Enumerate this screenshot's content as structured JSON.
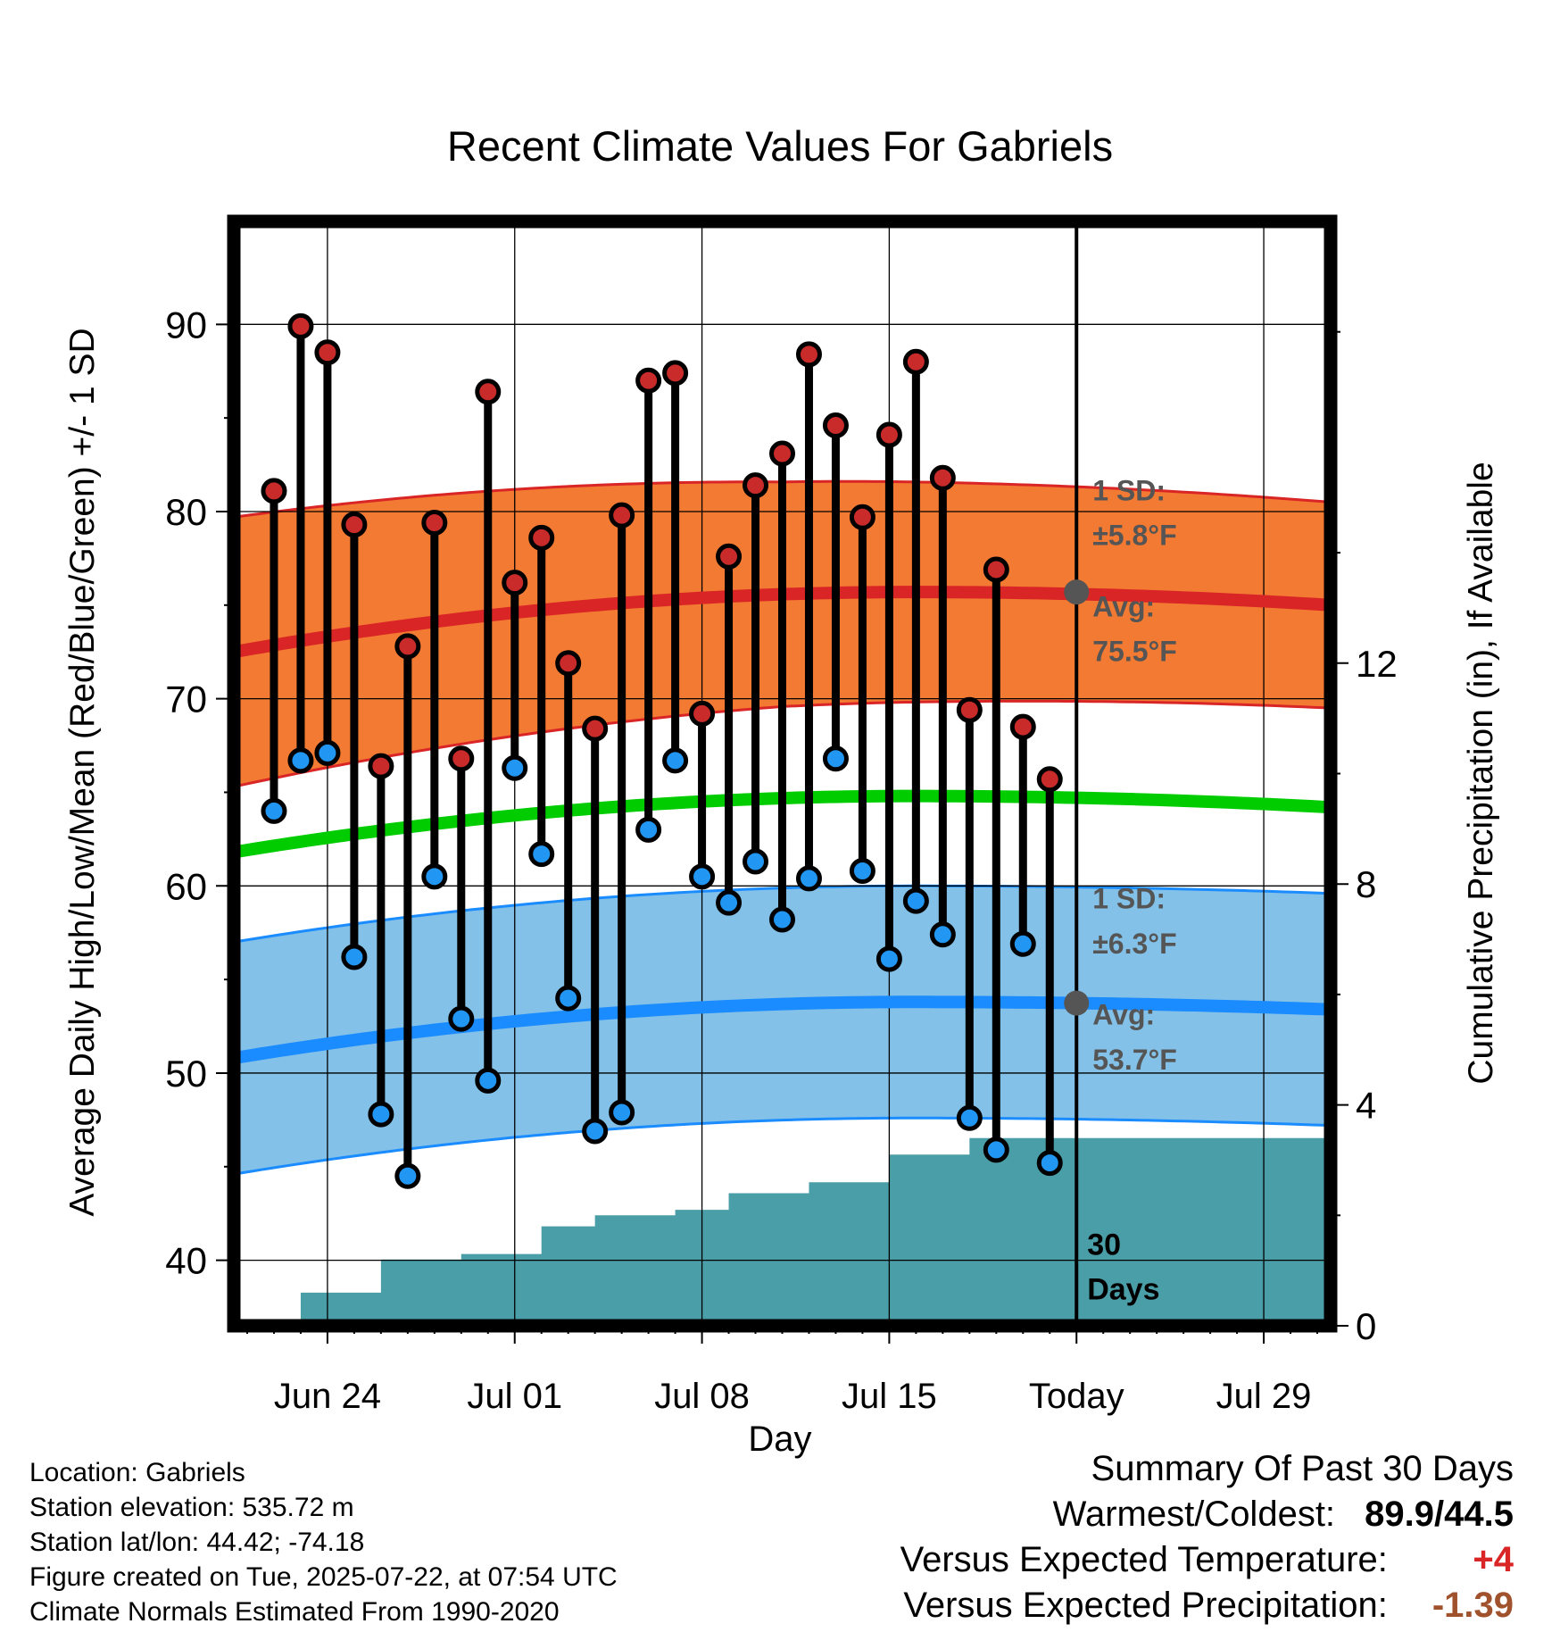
{
  "chart_data": {
    "type": "line",
    "title": "Recent Climate Values For Gabriels",
    "xlabel": "Day",
    "ylabel_left": "Average Daily High/Low/Mean (Red/Blue/Green) +/- 1 SD",
    "ylabel_right": "Cumulative Precipitation (in), If Available",
    "x_tick_labels": [
      "Jun 24",
      "Jul 01",
      "Jul 08",
      "Jul 15",
      "Today",
      "Jul 29"
    ],
    "y_left_ticks": [
      40,
      50,
      60,
      70,
      80,
      90
    ],
    "y_left_range": [
      36.5,
      95.5
    ],
    "y_right_ticks": [
      0,
      4,
      8,
      12
    ],
    "y_right_range": [
      0,
      20
    ],
    "x_range_days": [
      -31.5,
      9.5
    ],
    "today_label": "Today",
    "period_label": "30\nDays",
    "highs": [
      81.1,
      89.9,
      88.5,
      79.3,
      66.4,
      72.8,
      79.4,
      66.8,
      86.4,
      76.2,
      78.6,
      71.9,
      68.4,
      79.8,
      87.0,
      87.4,
      69.2,
      77.6,
      81.4,
      83.1,
      88.4,
      84.6,
      79.7,
      84.1,
      88.0,
      81.8,
      69.4,
      76.9,
      68.5,
      65.7
    ],
    "lows": [
      64.0,
      66.7,
      67.1,
      56.2,
      47.8,
      44.5,
      60.5,
      52.9,
      49.6,
      66.3,
      61.7,
      54.0,
      46.9,
      47.9,
      63.0,
      66.7,
      60.5,
      59.1,
      61.3,
      58.2,
      60.4,
      66.8,
      60.8,
      56.1,
      59.2,
      57.4,
      47.6,
      45.9,
      56.9,
      45.2
    ],
    "normal_high": {
      "label": "Avg:",
      "value_text": "75.5°F",
      "sd_label": "1 SD:",
      "sd_text": "±5.8°F",
      "mean_start": 72.5,
      "mean_peak": 75.7,
      "mean_end": 75.0,
      "sd_start": 7.2,
      "sd_mid": 6.0,
      "sd_end": 5.5
    },
    "normal_low": {
      "label": "Avg:",
      "value_text": "53.7°F",
      "sd_label": "1 SD:",
      "sd_text": "±6.3°F",
      "mean_start": 50.8,
      "mean_peak": 53.8,
      "mean_end": 53.4,
      "sd_start": 6.2,
      "sd_mid": 6.2,
      "sd_end": 6.2
    },
    "normal_mean": {
      "start": 61.8,
      "peak": 64.8,
      "end": 64.2
    },
    "precip_cumulative": [
      0,
      0.6,
      0.6,
      0.6,
      1.2,
      1.2,
      1.2,
      1.3,
      1.3,
      1.3,
      1.8,
      1.8,
      2.0,
      2.0,
      2.0,
      2.1,
      2.1,
      2.4,
      2.4,
      2.4,
      2.6,
      2.6,
      2.6,
      3.1,
      3.1,
      3.1,
      3.4,
      3.4,
      3.4,
      3.4
    ],
    "colors": {
      "high_band": "#f37a32",
      "high_line": "#d92526",
      "low_band": "#83c1e8",
      "low_line": "#1a8cff",
      "mean_line": "#00cc00",
      "precip": "#4a9ea7",
      "high_dot": "#c92a2a",
      "low_dot": "#2196f3",
      "annotation": "#555555"
    }
  },
  "footer": {
    "location": "Location: Gabriels",
    "elevation": "Station elevation: 535.72 m",
    "latlon": "Station lat/lon: 44.42; -74.18",
    "created": "Figure created on Tue, 2025-07-22, at 07:54 UTC",
    "normals": "Climate Normals Estimated From 1990-2020"
  },
  "summary": {
    "title": "Summary Of Past 30 Days",
    "warm_cold_label": "Warmest/Coldest:",
    "warm_cold_value": "89.9/44.5",
    "temp_label": "Versus Expected Temperature:",
    "temp_value": "+4",
    "temp_color": "#d92526",
    "precip_label": "Versus Expected Precipitation:",
    "precip_value": "-1.39",
    "precip_color": "#a0522d"
  }
}
